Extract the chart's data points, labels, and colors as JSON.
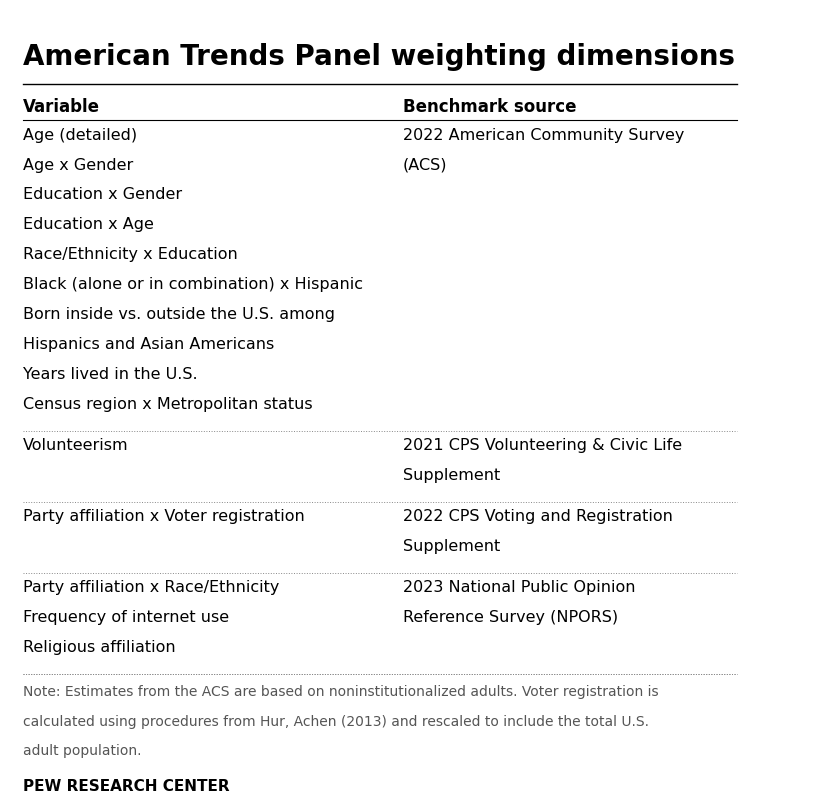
{
  "title": "American Trends Panel weighting dimensions",
  "col_header_left": "Variable",
  "col_header_right": "Benchmark source",
  "rows": [
    {
      "variables": [
        "Age (detailed)",
        "Age x Gender",
        "Education x Gender",
        "Education x Age",
        "Race/Ethnicity x Education",
        "Black (alone or in combination) x Hispanic",
        "Born inside vs. outside the U.S. among\nHispanics and Asian Americans",
        "Years lived in the U.S.",
        "Census region x Metropolitan status"
      ],
      "benchmark": "2022 American Community Survey\n(ACS)"
    },
    {
      "variables": [
        "Volunteerism"
      ],
      "benchmark": "2021 CPS Volunteering & Civic Life\nSupplement"
    },
    {
      "variables": [
        "Party affiliation x Voter registration"
      ],
      "benchmark": "2022 CPS Voting and Registration\nSupplement"
    },
    {
      "variables": [
        "Party affiliation x Race/Ethnicity",
        "Frequency of internet use",
        "Religious affiliation"
      ],
      "benchmark": "2023 National Public Opinion\nReference Survey (NPORS)"
    }
  ],
  "note": "Note: Estimates from the ACS are based on noninstitutionalized adults. Voter registration is\ncalculated using procedures from Hur, Achen (2013) and rescaled to include the total U.S.\nadult population.",
  "source": "PEW RESEARCH CENTER",
  "bg_color": "#ffffff",
  "text_color": "#000000",
  "header_line_color": "#000000",
  "divider_color": "#888888",
  "title_fontsize": 20,
  "header_fontsize": 12,
  "body_fontsize": 11.5,
  "note_fontsize": 10,
  "source_fontsize": 11
}
